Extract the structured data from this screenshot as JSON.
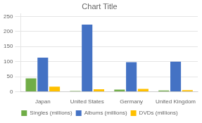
{
  "chart_data": {
    "type": "bar",
    "title": "Chart Title",
    "categories": [
      "Japan",
      "United States",
      "Germany",
      "United Kingdom"
    ],
    "series": [
      {
        "name": "Singles (millions)",
        "color": "#70ad47",
        "values": [
          44,
          2,
          7,
          4
        ]
      },
      {
        "name": "Albums (millions)",
        "color": "#4472c4",
        "values": [
          113,
          223,
          98,
          100
        ]
      },
      {
        "name": "DVDs (millions)",
        "color": "#ffc000",
        "values": [
          17,
          8,
          9,
          5
        ]
      }
    ],
    "ylim": [
      0,
      260
    ],
    "yticks": [
      0,
      50,
      100,
      150,
      200,
      250
    ],
    "grid": true,
    "legend": "bottom"
  }
}
